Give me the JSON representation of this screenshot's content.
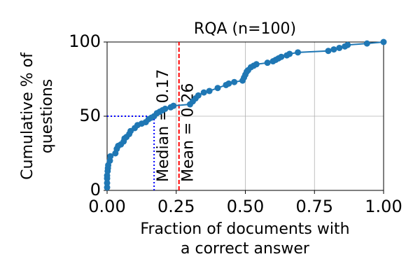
{
  "chart_data": {
    "type": "line",
    "title": "RQA (n=100)",
    "x_label": [
      "Fraction of documents with",
      "a correct answer"
    ],
    "y_label": [
      "Cumulative % of",
      "questions"
    ],
    "x": [
      0,
      0,
      0,
      0,
      0.002,
      0.003,
      0.004,
      0.01,
      0.012,
      0.03,
      0.035,
      0.04,
      0.05,
      0.06,
      0.063,
      0.07,
      0.08,
      0.085,
      0.1,
      0.11,
      0.125,
      0.14,
      0.15,
      0.16,
      0.17,
      0.18,
      0.19,
      0.2,
      0.21,
      0.23,
      0.24,
      0.3,
      0.31,
      0.32,
      0.33,
      0.35,
      0.37,
      0.4,
      0.43,
      0.44,
      0.46,
      0.49,
      0.495,
      0.5,
      0.505,
      0.51,
      0.52,
      0.53,
      0.54,
      0.58,
      0.6,
      0.61,
      0.62,
      0.63,
      0.65,
      0.66,
      0.69,
      0.8,
      0.82,
      0.84,
      0.86,
      0.87,
      0.94,
      1
    ],
    "series": [
      {
        "name": "RQA",
        "color": "#1f77b4",
        "values": [
          2,
          5,
          8,
          10,
          13,
          15,
          17,
          20,
          23,
          25,
          28,
          30,
          31,
          33,
          35,
          36,
          38,
          40,
          42,
          44,
          45,
          46,
          48,
          49,
          50,
          52,
          53,
          54,
          55,
          56,
          57,
          58,
          60,
          62,
          64,
          66,
          67,
          69,
          71,
          72,
          73,
          74,
          76,
          78,
          80,
          81,
          83,
          84,
          85,
          86,
          87,
          88,
          89,
          90,
          91,
          92,
          93,
          94,
          95,
          96,
          97,
          98,
          99,
          100
        ]
      }
    ],
    "median": 0.17,
    "median_color": "blue",
    "median_label": "Median = 0.17",
    "mean": 0.26,
    "mean_color": "red",
    "mean_label": "Mean = 0.26",
    "xlim": [
      0,
      1
    ],
    "ylim": [
      0,
      100
    ],
    "xticks": [
      {
        "value": 0,
        "label": "0.00"
      },
      {
        "value": 0.25,
        "label": "0.25"
      },
      {
        "value": 0.5,
        "label": "0.50"
      },
      {
        "value": 0.75,
        "label": "0.75"
      },
      {
        "value": 1,
        "label": "1.00"
      }
    ],
    "yticks": [
      0,
      50,
      100
    ],
    "grid": true
  }
}
